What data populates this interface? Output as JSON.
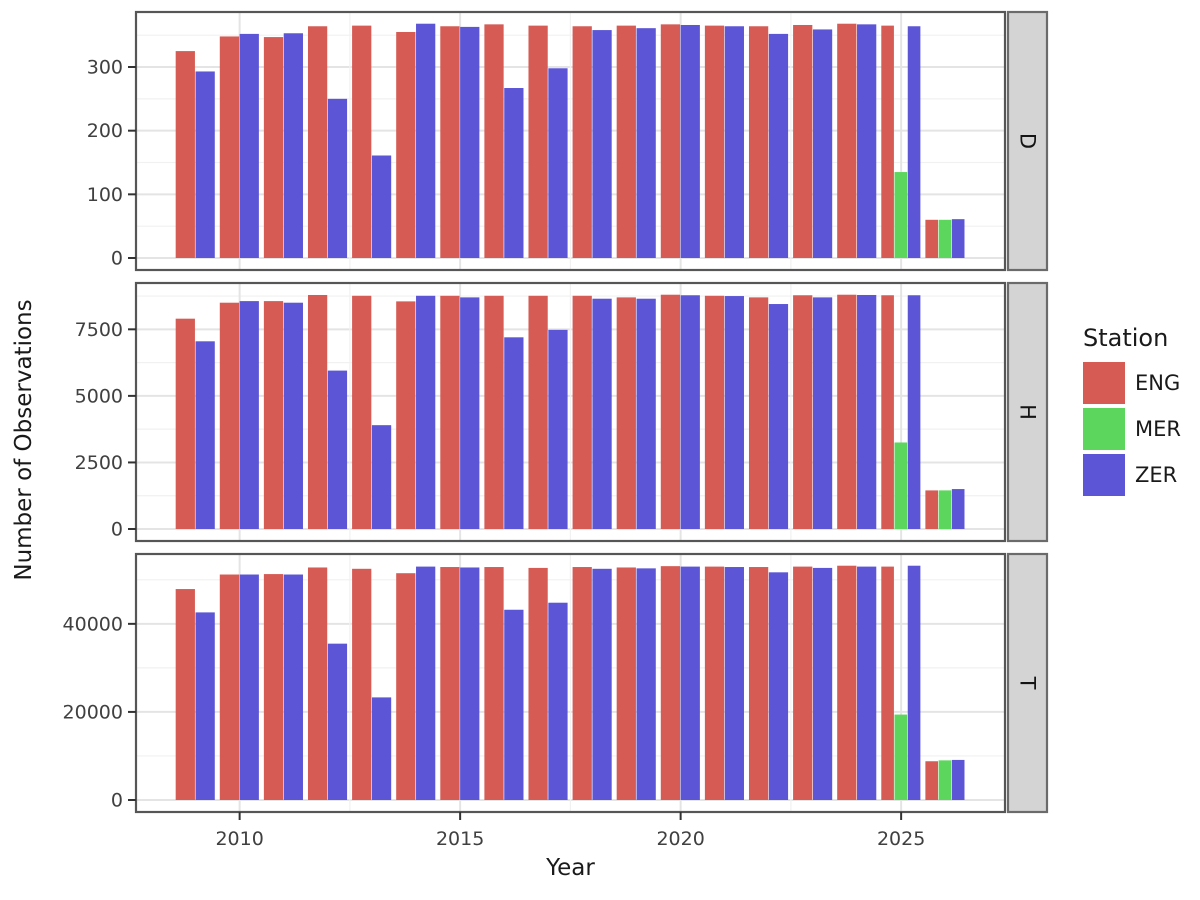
{
  "chart_data": {
    "type": "bar",
    "orientation": "vertical",
    "title": "",
    "xlabel": "Year",
    "ylabel": "Number of Observations",
    "grid": true,
    "x_major_ticks": [
      2010,
      2015,
      2020,
      2025
    ],
    "legend": {
      "title": "Station",
      "position": "right"
    },
    "series": [
      {
        "name": "ENG",
        "color": "#d65b54"
      },
      {
        "name": "MER",
        "color": "#5cd65c"
      },
      {
        "name": "ZER",
        "color": "#5c55d6"
      }
    ],
    "style": {
      "panel_background": "#ffffff",
      "panel_border": "#565656",
      "grid_major": "#e4e4e4",
      "grid_minor": "#f1f1f1",
      "strip_fill": "#d4d4d4",
      "strip_border": "#6b6b6b",
      "tick_color": "#333333",
      "tick_label_color": "#404040"
    },
    "facets": [
      {
        "label": "D",
        "y_ticks": [
          0,
          100,
          200,
          300
        ],
        "rows": [
          {
            "year": 2009,
            "ENG": 325,
            "MER": null,
            "ZER": 293
          },
          {
            "year": 2010,
            "ENG": 348,
            "MER": null,
            "ZER": 352
          },
          {
            "year": 2011,
            "ENG": 347,
            "MER": null,
            "ZER": 353
          },
          {
            "year": 2012,
            "ENG": 364,
            "MER": null,
            "ZER": 250
          },
          {
            "year": 2013,
            "ENG": 365,
            "MER": null,
            "ZER": 161
          },
          {
            "year": 2014,
            "ENG": 355,
            "MER": null,
            "ZER": 368
          },
          {
            "year": 2015,
            "ENG": 364,
            "MER": null,
            "ZER": 363
          },
          {
            "year": 2016,
            "ENG": 367,
            "MER": null,
            "ZER": 267
          },
          {
            "year": 2017,
            "ENG": 365,
            "MER": null,
            "ZER": 298
          },
          {
            "year": 2018,
            "ENG": 364,
            "MER": null,
            "ZER": 358
          },
          {
            "year": 2019,
            "ENG": 365,
            "MER": null,
            "ZER": 361
          },
          {
            "year": 2020,
            "ENG": 367,
            "MER": null,
            "ZER": 366
          },
          {
            "year": 2021,
            "ENG": 365,
            "MER": null,
            "ZER": 364
          },
          {
            "year": 2022,
            "ENG": 364,
            "MER": null,
            "ZER": 352
          },
          {
            "year": 2023,
            "ENG": 366,
            "MER": null,
            "ZER": 359
          },
          {
            "year": 2024,
            "ENG": 368,
            "MER": null,
            "ZER": 367
          },
          {
            "year": 2025,
            "ENG": 365,
            "MER": 135,
            "ZER": 364
          },
          {
            "year": 2026,
            "ENG": 60,
            "MER": 60,
            "ZER": 61
          }
        ]
      },
      {
        "label": "H",
        "y_ticks": [
          0,
          2500,
          5000,
          7500
        ],
        "rows": [
          {
            "year": 2009,
            "ENG": 7900,
            "MER": null,
            "ZER": 7050
          },
          {
            "year": 2010,
            "ENG": 8500,
            "MER": null,
            "ZER": 8560
          },
          {
            "year": 2011,
            "ENG": 8560,
            "MER": null,
            "ZER": 8500
          },
          {
            "year": 2012,
            "ENG": 8790,
            "MER": null,
            "ZER": 5950
          },
          {
            "year": 2013,
            "ENG": 8760,
            "MER": null,
            "ZER": 3900
          },
          {
            "year": 2014,
            "ENG": 8550,
            "MER": null,
            "ZER": 8760
          },
          {
            "year": 2015,
            "ENG": 8760,
            "MER": null,
            "ZER": 8700
          },
          {
            "year": 2016,
            "ENG": 8760,
            "MER": null,
            "ZER": 7200
          },
          {
            "year": 2017,
            "ENG": 8760,
            "MER": null,
            "ZER": 7480
          },
          {
            "year": 2018,
            "ENG": 8760,
            "MER": null,
            "ZER": 8650
          },
          {
            "year": 2019,
            "ENG": 8700,
            "MER": null,
            "ZER": 8650
          },
          {
            "year": 2020,
            "ENG": 8800,
            "MER": null,
            "ZER": 8780
          },
          {
            "year": 2021,
            "ENG": 8760,
            "MER": null,
            "ZER": 8750
          },
          {
            "year": 2022,
            "ENG": 8700,
            "MER": null,
            "ZER": 8450
          },
          {
            "year": 2023,
            "ENG": 8780,
            "MER": null,
            "ZER": 8700
          },
          {
            "year": 2024,
            "ENG": 8800,
            "MER": null,
            "ZER": 8790
          },
          {
            "year": 2025,
            "ENG": 8780,
            "MER": 3250,
            "ZER": 8780
          },
          {
            "year": 2026,
            "ENG": 1450,
            "MER": 1450,
            "ZER": 1500
          }
        ]
      },
      {
        "label": "T",
        "y_ticks": [
          0,
          20000,
          40000
        ],
        "rows": [
          {
            "year": 2009,
            "ENG": 47900,
            "MER": null,
            "ZER": 42600
          },
          {
            "year": 2010,
            "ENG": 51200,
            "MER": null,
            "ZER": 51200
          },
          {
            "year": 2011,
            "ENG": 51300,
            "MER": null,
            "ZER": 51200
          },
          {
            "year": 2012,
            "ENG": 52800,
            "MER": null,
            "ZER": 35500
          },
          {
            "year": 2013,
            "ENG": 52500,
            "MER": null,
            "ZER": 23300
          },
          {
            "year": 2014,
            "ENG": 51500,
            "MER": null,
            "ZER": 53000
          },
          {
            "year": 2015,
            "ENG": 52900,
            "MER": null,
            "ZER": 52800
          },
          {
            "year": 2016,
            "ENG": 52900,
            "MER": null,
            "ZER": 43200
          },
          {
            "year": 2017,
            "ENG": 52700,
            "MER": null,
            "ZER": 44800
          },
          {
            "year": 2018,
            "ENG": 52900,
            "MER": null,
            "ZER": 52500
          },
          {
            "year": 2019,
            "ENG": 52800,
            "MER": null,
            "ZER": 52600
          },
          {
            "year": 2020,
            "ENG": 53100,
            "MER": null,
            "ZER": 53000
          },
          {
            "year": 2021,
            "ENG": 53000,
            "MER": null,
            "ZER": 52900
          },
          {
            "year": 2022,
            "ENG": 52900,
            "MER": null,
            "ZER": 51700
          },
          {
            "year": 2023,
            "ENG": 53000,
            "MER": null,
            "ZER": 52700
          },
          {
            "year": 2024,
            "ENG": 53200,
            "MER": null,
            "ZER": 53000
          },
          {
            "year": 2025,
            "ENG": 53000,
            "MER": 19400,
            "ZER": 53200
          },
          {
            "year": 2026,
            "ENG": 8800,
            "MER": 9000,
            "ZER": 9100
          }
        ]
      }
    ]
  }
}
